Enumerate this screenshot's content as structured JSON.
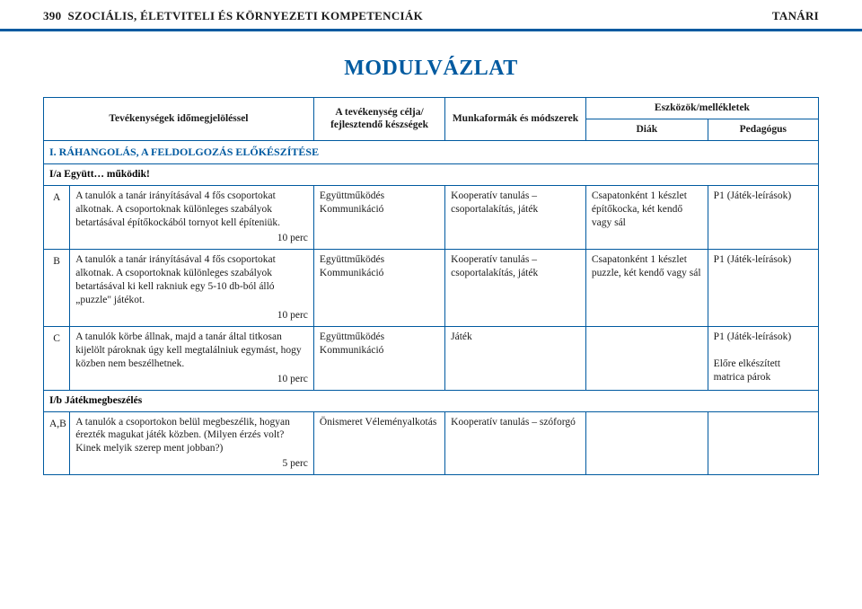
{
  "header": {
    "page_number": "390",
    "left_text": "SZOCIÁLIS, ÉLETVITELI ÉS KÖRNYEZETI KOMPETENCIÁK",
    "right_text": "TANÁRI"
  },
  "title": "MODULVÁZLAT",
  "columns": {
    "c1": "Tevékenységek időmegjelöléssel",
    "c2": "A tevékenység célja/ fejlesztendő készségek",
    "c3": "Munkaformák és módszerek",
    "c45_top": "Eszközök/mellékletek",
    "c4": "Diák",
    "c5": "Pedagógus"
  },
  "section1": "I. RÁHANGOLÁS, A FELDOLGOZÁS ELŐKÉSZÍTÉSE",
  "sub1a": "I/a Együtt… működik!",
  "rows": {
    "A": {
      "marker": "A",
      "activity": "A tanulók a tanár irányításával 4 fős csoportokat alkotnak. A csoportoknak különleges szabályok betartásával építőkockából tornyot kell építeniük.",
      "timing": "10 perc",
      "goal": "Együttműködés Kommunikáció",
      "method": "Kooperatív tanulás – csoportalakítás, játék",
      "diak": "Csapatonként 1 készlet építőkocka, két kendő vagy sál",
      "ped": "P1 (Játék-leírások)"
    },
    "B": {
      "marker": "B",
      "activity": "A tanulók a tanár irányításával 4 fős csoportokat alkotnak. A csoportoknak különleges szabályok betartásával ki kell rakniuk egy 5-10 db-ból álló „puzzle\" játékot.",
      "timing": "10 perc",
      "goal": "Együttműködés Kommunikáció",
      "method": "Kooperatív tanulás – csoportalakítás, játék",
      "diak": "Csapatonként 1 készlet puzzle, két kendő vagy sál",
      "ped": "P1 (Játék-leírások)"
    },
    "C": {
      "marker": "C",
      "activity": "A tanulók körbe állnak, majd a tanár által titkosan kijelölt pároknak úgy kell megtalálniuk egymást, hogy közben nem beszélhetnek.",
      "timing": "10 perc",
      "goal": "Együttműködés Kommunikáció",
      "method": "Játék",
      "diak": "",
      "ped1": "P1 (Játék-leírások)",
      "ped2": "Előre elkészített matrica párok"
    }
  },
  "sub1b": "I/b Játékmegbeszélés",
  "rowAB": {
    "marker": "A,B",
    "activity": "A tanulók a csoportokon belül megbeszélik, hogyan érezték magukat játék közben. (Milyen érzés volt? Kinek melyik szerep ment jobban?)",
    "timing": "5 perc",
    "goal": "Önismeret Véleményalkotás",
    "method": "Kooperatív tanulás – szóforgó",
    "diak": "",
    "ped": ""
  },
  "colors": {
    "accent": "#005aa0",
    "text": "#1a1a1a",
    "bg": "#ffffff"
  }
}
